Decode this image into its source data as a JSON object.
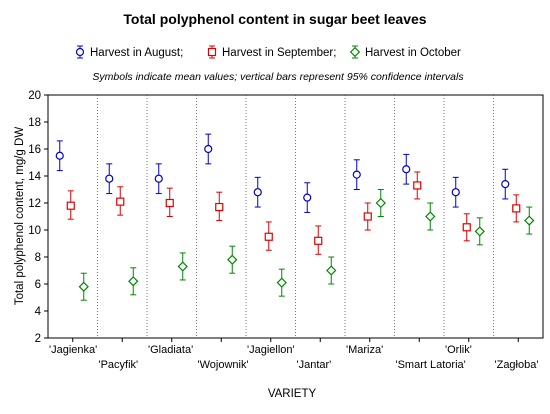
{
  "chart_data": {
    "type": "scatter",
    "title": "Total polyphenol content in sugar beet leaves",
    "note": "Symbols indicate mean values; vertical bars represent 95% confidence intervals",
    "xlabel": "VARIETY",
    "ylabel": "Total polyphenol content, mg/g DW",
    "ylim": [
      2,
      20
    ],
    "yticks": [
      2,
      4,
      6,
      8,
      10,
      12,
      14,
      16,
      18,
      20
    ],
    "grid": "vertical dotted",
    "legend_position": "top",
    "categories": [
      "'Jagienka'",
      "'Pacyfik'",
      "'Gladiata'",
      "'Wojownik'",
      "'Jagiellon'",
      "'Jantar'",
      "'Mariza'",
      "'Smart Latoria'",
      "'Orlik'",
      "'Zagłoba'"
    ],
    "series": [
      {
        "name": "Harvest in August;",
        "color": "#0000d0",
        "marker": "circle",
        "values": [
          15.5,
          13.8,
          13.8,
          16.0,
          12.8,
          12.4,
          14.1,
          14.5,
          12.8,
          13.4
        ],
        "ci_low": [
          14.4,
          12.7,
          12.7,
          14.9,
          11.7,
          11.3,
          13.0,
          13.4,
          11.7,
          12.3
        ],
        "ci_high": [
          16.6,
          14.9,
          14.9,
          17.1,
          13.9,
          13.5,
          15.2,
          15.6,
          13.9,
          14.5
        ]
      },
      {
        "name": "Harvest in September;",
        "color": "#e00000",
        "marker": "square",
        "values": [
          11.8,
          12.1,
          12.0,
          11.7,
          9.5,
          9.2,
          11.0,
          13.3,
          10.2,
          11.6
        ],
        "ci_low": [
          10.8,
          11.1,
          11.0,
          10.7,
          8.5,
          8.2,
          10.0,
          12.3,
          9.2,
          10.6
        ],
        "ci_high": [
          12.9,
          13.2,
          13.1,
          12.8,
          10.6,
          10.3,
          12.0,
          14.3,
          11.2,
          12.6
        ]
      },
      {
        "name": "Harvest in October",
        "color": "#008800",
        "marker": "diamond",
        "values": [
          5.8,
          6.2,
          7.3,
          7.8,
          6.1,
          7.0,
          12.0,
          11.0,
          9.9,
          10.7
        ],
        "ci_low": [
          4.8,
          5.2,
          6.3,
          6.8,
          5.1,
          6.0,
          11.0,
          10.0,
          8.9,
          9.7
        ],
        "ci_high": [
          6.8,
          7.2,
          8.3,
          8.8,
          7.1,
          8.0,
          13.0,
          12.0,
          10.9,
          11.7
        ]
      }
    ]
  }
}
